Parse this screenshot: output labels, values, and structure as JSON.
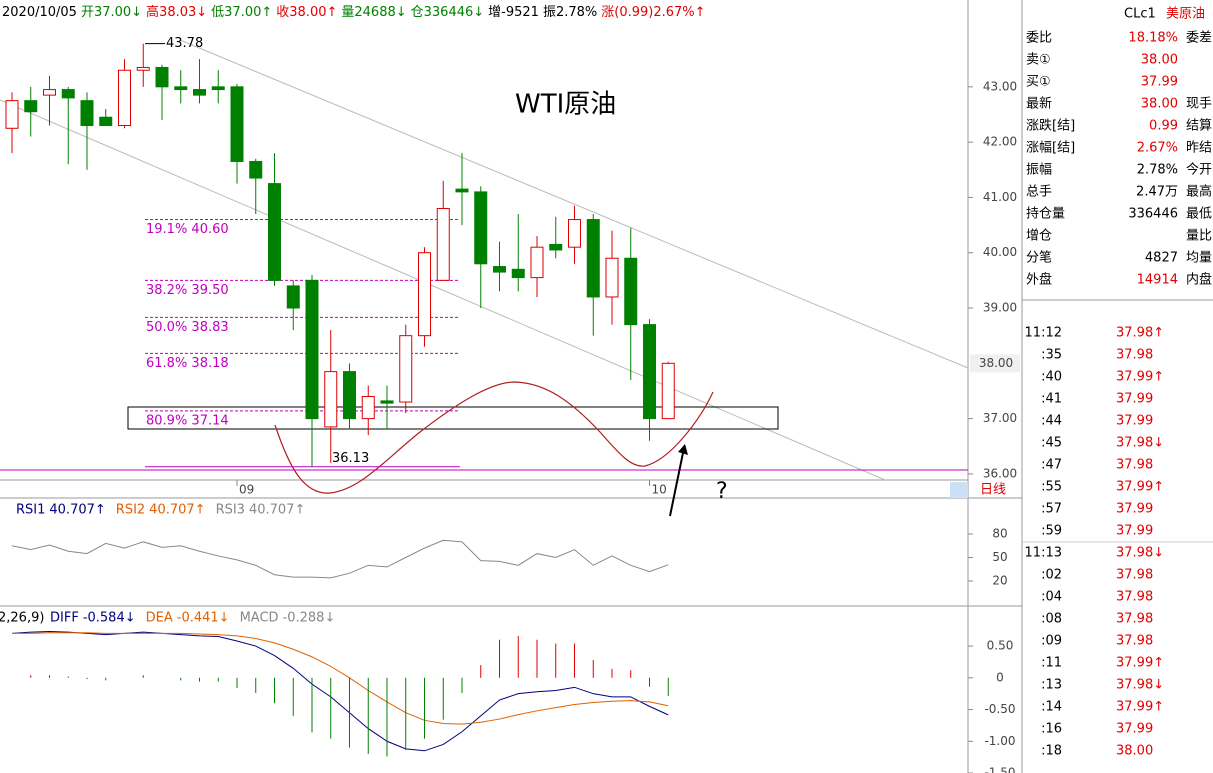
{
  "header": [
    {
      "text": "2020/10/05",
      "color": "#000000"
    },
    {
      "text": "开37.00↓",
      "color": "#008000"
    },
    {
      "text": "高38.03↓",
      "color": "#e00000"
    },
    {
      "text": "低37.00↑",
      "color": "#008000"
    },
    {
      "text": "收38.00↑",
      "color": "#e00000"
    },
    {
      "text": "量24688↓",
      "color": "#008000"
    },
    {
      "text": "仓336446↓",
      "color": "#008000"
    },
    {
      "text": "增-9521",
      "color": "#000000"
    },
    {
      "text": "振2.78%",
      "color": "#000000"
    },
    {
      "text": "涨(0.99)2.67%↑",
      "color": "#e00000"
    }
  ],
  "chart_data": [
    {
      "type": "candlestick",
      "title": "WTI原油",
      "categories": [
        null,
        null,
        null,
        null,
        null,
        null,
        null,
        null,
        null,
        null,
        null,
        null,
        "09",
        null,
        null,
        null,
        null,
        null,
        null,
        null,
        null,
        null,
        null,
        null,
        null,
        null,
        null,
        null,
        null,
        null,
        null,
        null,
        null,
        null,
        "10",
        null
      ],
      "open": [
        42.25,
        42.75,
        42.85,
        42.95,
        42.75,
        42.45,
        42.3,
        43.3,
        43.35,
        43.0,
        42.95,
        43.0,
        43.0,
        41.65,
        41.25,
        39.4,
        39.5,
        36.85,
        37.85,
        37.0,
        37.32,
        37.3,
        38.5,
        39.5,
        41.15,
        41.1,
        39.75,
        39.7,
        39.55,
        40.15,
        40.1,
        40.6,
        39.2,
        39.9,
        38.7,
        37.0
      ],
      "high": [
        42.9,
        43.0,
        43.2,
        43.0,
        42.9,
        42.6,
        43.5,
        43.78,
        43.4,
        43.3,
        43.5,
        43.3,
        43.05,
        41.7,
        41.8,
        39.5,
        39.6,
        38.6,
        38.0,
        37.6,
        37.6,
        38.7,
        40.1,
        41.3,
        41.8,
        41.2,
        40.2,
        40.7,
        40.3,
        40.65,
        40.85,
        40.7,
        40.4,
        40.45,
        38.8,
        38.03
      ],
      "low": [
        41.8,
        42.1,
        42.3,
        41.6,
        41.5,
        42.3,
        42.25,
        43.0,
        42.4,
        42.7,
        42.7,
        42.7,
        41.25,
        40.7,
        39.4,
        38.6,
        36.13,
        36.2,
        36.8,
        36.7,
        36.8,
        37.1,
        38.3,
        39.5,
        40.5,
        39.0,
        39.3,
        39.3,
        39.2,
        39.9,
        39.8,
        38.5,
        38.7,
        37.7,
        36.6,
        37.0
      ],
      "close": [
        42.75,
        42.55,
        42.95,
        42.8,
        42.3,
        42.3,
        43.3,
        43.35,
        43.0,
        42.95,
        42.85,
        42.95,
        41.65,
        41.35,
        39.5,
        39.0,
        37.0,
        37.85,
        37.0,
        37.4,
        37.28,
        38.5,
        40.0,
        40.8,
        41.1,
        39.8,
        39.65,
        39.55,
        40.1,
        40.05,
        40.6,
        39.2,
        39.9,
        38.7,
        37.0,
        38.0
      ],
      "up_color": "#e00000",
      "down_color": "#008000",
      "ylim": [
        35.89,
        44.57
      ],
      "yticks": [
        {
          "value": 36,
          "label": "36.00"
        },
        {
          "value": 37,
          "label": "37.00"
        },
        {
          "value": 39,
          "label": "39.00"
        },
        {
          "value": 40,
          "label": "40.00"
        },
        {
          "value": 41,
          "label": "41.00"
        },
        {
          "value": 42,
          "label": "42.00"
        },
        {
          "value": 43,
          "label": "43.00"
        }
      ],
      "last_price": {
        "value": 38,
        "label": "38.00"
      },
      "fib_levels": [
        {
          "value": 40.6,
          "label": "19.1% 40.60"
        },
        {
          "value": 39.5,
          "label": "38.2% 39.50"
        },
        {
          "value": 38.83,
          "label": "50.0% 38.83"
        },
        {
          "value": 38.18,
          "label": "61.8% 38.18"
        },
        {
          "value": 37.14,
          "label": "80.9% 37.14"
        }
      ],
      "high_label": {
        "value": 43.78,
        "label": "43.78"
      },
      "low_label": {
        "value": 36.13,
        "label": "36.13"
      },
      "period": "日线",
      "annotation": "?"
    },
    {
      "type": "line",
      "series": [
        {
          "name": "RSI1",
          "current": "40.707↑",
          "color": "#000080",
          "line_color": "#888888",
          "values": [
            65,
            60,
            66,
            58,
            55,
            68,
            62,
            70,
            63,
            65,
            58,
            52,
            47,
            40,
            28,
            25,
            25,
            24,
            30,
            40,
            38,
            50,
            62,
            72,
            70,
            46,
            45,
            40,
            55,
            50,
            60,
            40,
            52,
            40,
            32,
            40.707
          ]
        },
        {
          "name": "RSI2",
          "current": "40.707↑",
          "color": "#e06000"
        },
        {
          "name": "RSI3",
          "current": "40.707↑",
          "color": "#888888"
        }
      ],
      "ylim": [
        -11.9,
        123.4
      ],
      "yticks": [
        20,
        50,
        80
      ]
    },
    {
      "type": "macd",
      "params": "2,26,9)",
      "series": [
        {
          "name": "DIFF",
          "current": "-0.584↓",
          "color": "#000080",
          "values": [
            0.7,
            0.72,
            0.73,
            0.72,
            0.7,
            0.68,
            0.7,
            0.72,
            0.7,
            0.68,
            0.66,
            0.65,
            0.58,
            0.5,
            0.35,
            0.15,
            -0.1,
            -0.3,
            -0.55,
            -0.8,
            -1.0,
            -1.12,
            -1.15,
            -1.05,
            -0.85,
            -0.6,
            -0.35,
            -0.25,
            -0.22,
            -0.2,
            -0.15,
            -0.25,
            -0.3,
            -0.3,
            -0.45,
            -0.584
          ]
        },
        {
          "name": "DEA",
          "current": "-0.441↓",
          "color": "#e06000",
          "values": [
            0.7,
            0.7,
            0.71,
            0.71,
            0.71,
            0.7,
            0.7,
            0.7,
            0.7,
            0.7,
            0.69,
            0.68,
            0.66,
            0.62,
            0.55,
            0.45,
            0.33,
            0.18,
            0.0,
            -0.2,
            -0.38,
            -0.55,
            -0.67,
            -0.72,
            -0.73,
            -0.7,
            -0.65,
            -0.58,
            -0.52,
            -0.47,
            -0.42,
            -0.39,
            -0.37,
            -0.36,
            -0.38,
            -0.441
          ]
        },
        {
          "name": "MACD",
          "current": "-0.288↓",
          "color": "#888888",
          "values": [
            0,
            0.04,
            0.04,
            0.02,
            -0.02,
            -0.04,
            0,
            0.04,
            0,
            -0.04,
            -0.06,
            -0.06,
            -0.16,
            -0.24,
            -0.4,
            -0.6,
            -0.86,
            -0.96,
            -1.1,
            -1.2,
            -1.24,
            -1.14,
            -0.96,
            -0.66,
            -0.24,
            0.2,
            0.6,
            0.66,
            0.6,
            0.54,
            0.54,
            0.28,
            0.14,
            0.12,
            -0.14,
            -0.288
          ]
        }
      ],
      "ylim": [
        -1.5,
        1.1
      ],
      "yticks": [
        {
          "value": -1.5,
          "label": "-1.50"
        },
        {
          "value": -1,
          "label": "-1.00"
        },
        {
          "value": -0.5,
          "label": "-0.50"
        },
        0,
        {
          "value": 0.5,
          "label": "0.50"
        }
      ]
    }
  ],
  "quote": {
    "symbol": "CLc1",
    "name": "美原油",
    "rows": [
      {
        "label": "委比",
        "value": "18.18%",
        "label2": "委差",
        "color": "#e00000"
      },
      {
        "label": "卖①",
        "value": "38.00",
        "label2": "",
        "color": "#e00000"
      },
      {
        "label": "买①",
        "value": "37.99",
        "label2": "",
        "color": "#e00000"
      },
      {
        "label": "最新",
        "value": "38.00",
        "label2": "现手",
        "color": "#e00000"
      },
      {
        "label": "涨跌[结]",
        "value": "0.99",
        "label2": "结算",
        "color": "#e00000"
      },
      {
        "label": "涨幅[结]",
        "value": "2.67%",
        "label2": "昨结",
        "color": "#e00000"
      },
      {
        "label": "振幅",
        "value": "2.78%",
        "label2": "今开",
        "color": "#000000"
      },
      {
        "label": "总手",
        "value": "2.47万",
        "label2": "最高",
        "color": "#000000"
      },
      {
        "label": "持仓量",
        "value": "336446",
        "label2": "最低",
        "color": "#000000"
      },
      {
        "label": "增仓",
        "value": "",
        "label2": "量比",
        "color": "#000000"
      },
      {
        "label": "分笔",
        "value": "4827",
        "label2": "均量",
        "color": "#000000"
      },
      {
        "label": "外盘",
        "value": "14914",
        "label2": "内盘",
        "color": "#e00000"
      }
    ]
  },
  "ticks": [
    {
      "time": "11:12",
      "price": "37.98↑"
    },
    {
      "time": ":35",
      "price": "37.98"
    },
    {
      "time": ":40",
      "price": "37.99↑"
    },
    {
      "time": ":41",
      "price": "37.99"
    },
    {
      "time": ":44",
      "price": "37.99"
    },
    {
      "time": ":45",
      "price": "37.98↓"
    },
    {
      "time": ":47",
      "price": "37.98"
    },
    {
      "time": ":55",
      "price": "37.99↑"
    },
    {
      "time": ":57",
      "price": "37.99"
    },
    {
      "time": ":59",
      "price": "37.99"
    },
    {
      "time": "11:13",
      "price": "37.98↓"
    },
    {
      "time": ":02",
      "price": "37.98"
    },
    {
      "time": ":04",
      "price": "37.98"
    },
    {
      "time": ":08",
      "price": "37.98"
    },
    {
      "time": ":09",
      "price": "37.98"
    },
    {
      "time": ":11",
      "price": "37.99↑"
    },
    {
      "time": ":13",
      "price": "37.98↓"
    },
    {
      "time": ":14",
      "price": "37.99↑"
    },
    {
      "time": ":16",
      "price": "37.99"
    },
    {
      "time": ":18",
      "price": "38.00"
    }
  ]
}
